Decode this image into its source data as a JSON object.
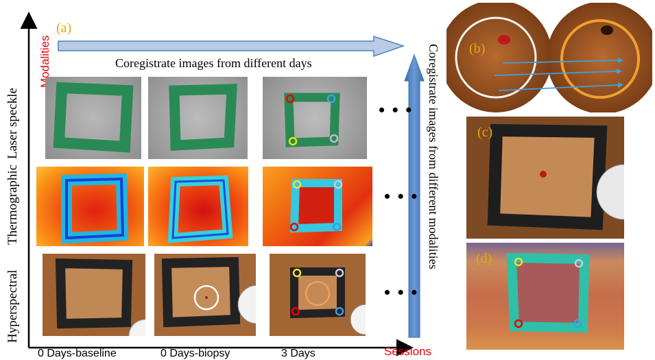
{
  "panel_labels": {
    "a": "(a)",
    "b": "(b)",
    "c": "(c)",
    "d": "(d)"
  },
  "axes": {
    "y_title": "Modalities",
    "x_title": "Sessions"
  },
  "modalities": [
    "Laser speckle",
    "Thermographic",
    "Hyperspectral"
  ],
  "sessions": [
    "0 Days-baseline",
    "0 Days-biopsy",
    "3 Days"
  ],
  "arrows": {
    "horizontal": "Coregistrate images from different days",
    "vertical": "Coregistrate images from different modalities"
  },
  "ellipsis": "• • •",
  "colors": {
    "axis_red": "#e8000b",
    "label_gold": "#e8a800",
    "arrow_fill": "#b8cce4",
    "arrow_blue": "#4f81bd",
    "frame_green": "#2a8a55"
  }
}
